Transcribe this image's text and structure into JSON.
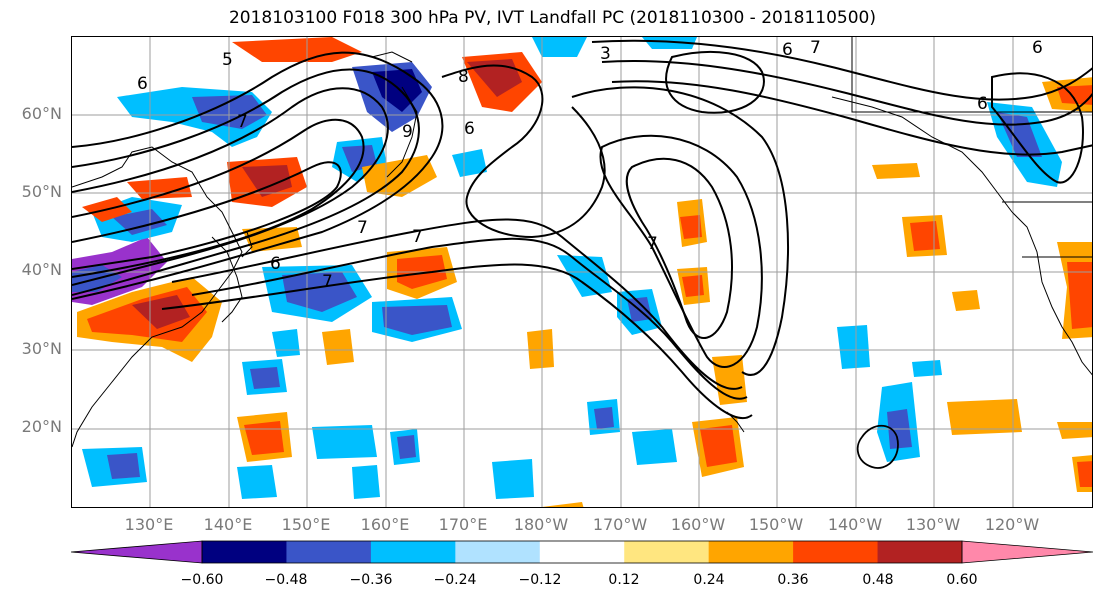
{
  "title": "2018103100 F018 300 hPa PV, IVT Landfall PC (2018110300 - 2018110500)",
  "lat_labels": [
    "60°N",
    "50°N",
    "40°N",
    "30°N",
    "20°N"
  ],
  "lon_labels": [
    "130°E",
    "140°E",
    "150°E",
    "160°E",
    "170°E",
    "180°W",
    "170°W",
    "160°W",
    "150°W",
    "140°W",
    "130°W",
    "120°W"
  ],
  "colorbar": {
    "tick_labels": [
      "−0.60",
      "−0.48",
      "−0.36",
      "−0.24",
      "−0.12",
      "0.12",
      "0.24",
      "0.36",
      "0.48",
      "0.60"
    ],
    "colors": [
      "#9932cc",
      "#000080",
      "#3a55c8",
      "#00bfff",
      "#b0e2ff",
      "#ffffff",
      "#ffe680",
      "#ffa500",
      "#ff4500",
      "#b22222",
      "#ff88aa"
    ]
  },
  "contour_labels": [
    "6",
    "5",
    "7",
    "8",
    "6",
    "9",
    "3",
    "6",
    "7",
    "6",
    "7",
    "6",
    "7",
    "7",
    "6",
    "7"
  ],
  "colors": {
    "lat_lon_label": "#7a7a7a",
    "grid": "#9e9e9e",
    "contour": "#000000"
  }
}
